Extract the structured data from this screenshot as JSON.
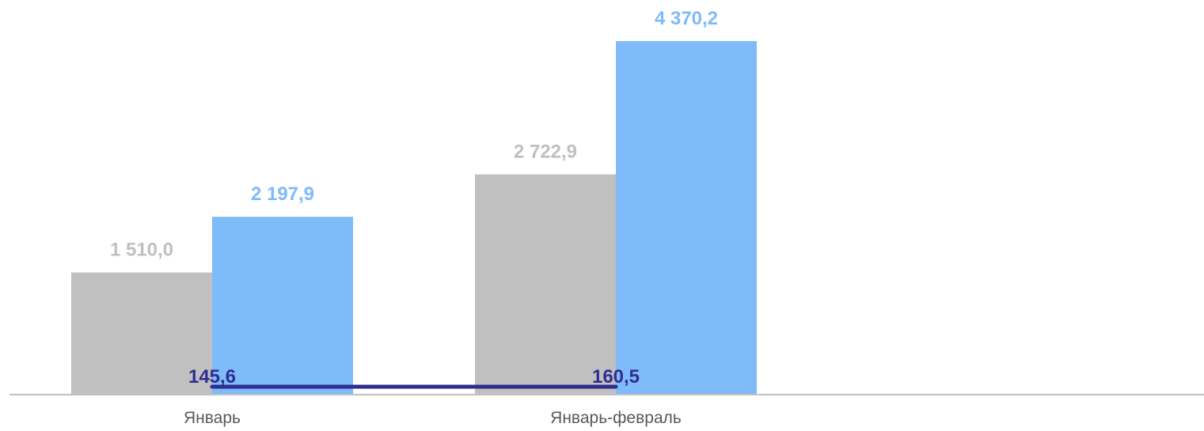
{
  "chart_data": {
    "type": "bar",
    "categories": [
      "Январь",
      "Январь-февраль"
    ],
    "series": [
      {
        "values": [
          1510.0,
          2722.9
        ],
        "labels": [
          "1 510,0",
          "2 722,9"
        ],
        "color": "#c0c0c0",
        "label_color": "#c0c0c0"
      },
      {
        "values": [
          2197.9,
          4370.2
        ],
        "labels": [
          "2 197,9",
          "4 370,2"
        ],
        "color": "#7fbaf9",
        "label_color": "#7fbaf9"
      }
    ],
    "line_series": {
      "type": "line",
      "values": [
        145.6,
        160.5
      ],
      "labels": [
        "145,6",
        "160,5"
      ],
      "color": "#2e2e91",
      "label_color": "#2e2e91"
    },
    "axis_color": "#c0c0c0",
    "grid": false,
    "legend": "none",
    "ylim": [
      0,
      4370.2
    ]
  }
}
